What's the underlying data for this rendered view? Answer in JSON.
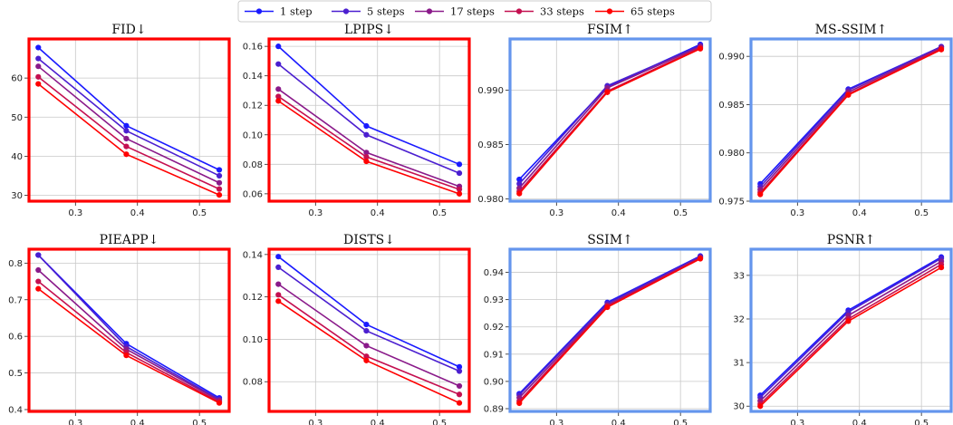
{
  "legend": {
    "placement": "top-center",
    "entries": [
      {
        "label": "1 step",
        "color": "#1a1aff"
      },
      {
        "label": "5 steps",
        "color": "#4b1fd0"
      },
      {
        "label": "17 steps",
        "color": "#8a1a8a"
      },
      {
        "label": "33 steps",
        "color": "#c41050"
      },
      {
        "label": "65 steps",
        "color": "#ff0000"
      }
    ]
  },
  "frame_colors": {
    "lower_is_better": "#ff0000",
    "higher_is_better": "#6495ed"
  },
  "chart_data": [
    {
      "type": "line",
      "title": "FID↓",
      "frame": "lower_is_better",
      "x": [
        0.24,
        0.382,
        0.532
      ],
      "xlim": [
        0.225,
        0.548
      ],
      "xticks": [
        0.3,
        0.4,
        0.5
      ],
      "ylim": [
        28.5,
        70
      ],
      "yticks": [
        30,
        40,
        50,
        60
      ],
      "yticklabels": [
        "30",
        "40",
        "50",
        "60"
      ],
      "grid": true,
      "series": [
        {
          "name": "1 step",
          "values": [
            67.8,
            47.8,
            36.5
          ]
        },
        {
          "name": "5 steps",
          "values": [
            65.0,
            46.5,
            35.0
          ]
        },
        {
          "name": "17 steps",
          "values": [
            63.0,
            44.5,
            33.2
          ]
        },
        {
          "name": "33 steps",
          "values": [
            60.3,
            42.5,
            31.6
          ]
        },
        {
          "name": "65 steps",
          "values": [
            58.5,
            40.5,
            30.1
          ]
        }
      ]
    },
    {
      "type": "line",
      "title": "LPIPS↓",
      "frame": "lower_is_better",
      "x": [
        0.24,
        0.382,
        0.532
      ],
      "xlim": [
        0.225,
        0.548
      ],
      "xticks": [
        0.3,
        0.4,
        0.5
      ],
      "ylim": [
        0.055,
        0.165
      ],
      "yticks": [
        0.06,
        0.08,
        0.1,
        0.12,
        0.14,
        0.16
      ],
      "yticklabels": [
        "0.06",
        "0.08",
        "0.10",
        "0.12",
        "0.14",
        "0.16"
      ],
      "grid": true,
      "series": [
        {
          "name": "1 step",
          "values": [
            0.16,
            0.106,
            0.08
          ]
        },
        {
          "name": "5 steps",
          "values": [
            0.148,
            0.1,
            0.074
          ]
        },
        {
          "name": "17 steps",
          "values": [
            0.131,
            0.088,
            0.065
          ]
        },
        {
          "name": "33 steps",
          "values": [
            0.126,
            0.085,
            0.063
          ]
        },
        {
          "name": "65 steps",
          "values": [
            0.123,
            0.082,
            0.06
          ]
        }
      ]
    },
    {
      "type": "line",
      "title": "FSIM↑",
      "frame": "higher_is_better",
      "x": [
        0.24,
        0.382,
        0.532
      ],
      "xlim": [
        0.225,
        0.548
      ],
      "xticks": [
        0.3,
        0.4,
        0.5
      ],
      "ylim": [
        0.9798,
        0.9947
      ],
      "yticks": [
        0.98,
        0.985,
        0.99
      ],
      "yticklabels": [
        "0.980",
        "0.985",
        "0.990"
      ],
      "grid": true,
      "series": [
        {
          "name": "1 step",
          "values": [
            0.9818,
            0.9903,
            0.9942
          ]
        },
        {
          "name": "5 steps",
          "values": [
            0.9814,
            0.9904,
            0.9941
          ]
        },
        {
          "name": "17 steps",
          "values": [
            0.981,
            0.9902,
            0.994
          ]
        },
        {
          "name": "33 steps",
          "values": [
            0.9807,
            0.9899,
            0.9939
          ]
        },
        {
          "name": "65 steps",
          "values": [
            0.9805,
            0.9898,
            0.9938
          ]
        }
      ]
    },
    {
      "type": "line",
      "title": "MS-SSIM↑",
      "frame": "higher_is_better",
      "x": [
        0.24,
        0.382,
        0.532
      ],
      "xlim": [
        0.225,
        0.548
      ],
      "xticks": [
        0.3,
        0.4,
        0.5
      ],
      "ylim": [
        0.975,
        0.9918
      ],
      "yticks": [
        0.975,
        0.98,
        0.985,
        0.99
      ],
      "yticklabels": [
        "0.975",
        "0.980",
        "0.985",
        "0.990"
      ],
      "grid": true,
      "series": [
        {
          "name": "1 step",
          "values": [
            0.9768,
            0.9866,
            0.991
          ]
        },
        {
          "name": "5 steps",
          "values": [
            0.9765,
            0.9865,
            0.991
          ]
        },
        {
          "name": "17 steps",
          "values": [
            0.9762,
            0.9863,
            0.9909
          ]
        },
        {
          "name": "33 steps",
          "values": [
            0.9759,
            0.9861,
            0.9908
          ]
        },
        {
          "name": "65 steps",
          "values": [
            0.9757,
            0.986,
            0.9907
          ]
        }
      ]
    },
    {
      "type": "line",
      "title": "PIEAPP↓",
      "frame": "lower_is_better",
      "x": [
        0.24,
        0.382,
        0.532
      ],
      "xlim": [
        0.225,
        0.548
      ],
      "xticks": [
        0.3,
        0.4,
        0.5
      ],
      "ylim": [
        0.395,
        0.838
      ],
      "yticks": [
        0.4,
        0.5,
        0.6,
        0.7,
        0.8
      ],
      "yticklabels": [
        "0.4",
        "0.5",
        "0.6",
        "0.7",
        "0.8"
      ],
      "grid": true,
      "series": [
        {
          "name": "1 step",
          "values": [
            0.822,
            0.58,
            0.432
          ]
        },
        {
          "name": "5 steps",
          "values": [
            0.822,
            0.572,
            0.428
          ]
        },
        {
          "name": "17 steps",
          "values": [
            0.781,
            0.565,
            0.425
          ]
        },
        {
          "name": "33 steps",
          "values": [
            0.75,
            0.556,
            0.421
          ]
        },
        {
          "name": "65 steps",
          "values": [
            0.73,
            0.548,
            0.418
          ]
        }
      ]
    },
    {
      "type": "line",
      "title": "DISTS↓",
      "frame": "lower_is_better",
      "x": [
        0.24,
        0.382,
        0.532
      ],
      "xlim": [
        0.225,
        0.548
      ],
      "xticks": [
        0.3,
        0.4,
        0.5
      ],
      "ylim": [
        0.066,
        0.1425
      ],
      "yticks": [
        0.08,
        0.1,
        0.12,
        0.14
      ],
      "yticklabels": [
        "0.08",
        "0.10",
        "0.12",
        "0.14"
      ],
      "grid": true,
      "series": [
        {
          "name": "1 step",
          "values": [
            0.139,
            0.107,
            0.087
          ]
        },
        {
          "name": "5 steps",
          "values": [
            0.134,
            0.104,
            0.085
          ]
        },
        {
          "name": "17 steps",
          "values": [
            0.126,
            0.097,
            0.078
          ]
        },
        {
          "name": "33 steps",
          "values": [
            0.121,
            0.092,
            0.074
          ]
        },
        {
          "name": "65 steps",
          "values": [
            0.118,
            0.09,
            0.07
          ]
        }
      ]
    },
    {
      "type": "line",
      "title": "SSIM↑",
      "frame": "higher_is_better",
      "x": [
        0.24,
        0.382,
        0.532
      ],
      "xlim": [
        0.225,
        0.548
      ],
      "xticks": [
        0.3,
        0.4,
        0.5
      ],
      "ylim": [
        0.889,
        0.9485
      ],
      "yticks": [
        0.89,
        0.9,
        0.91,
        0.92,
        0.93,
        0.94
      ],
      "yticklabels": [
        "0.89",
        "0.90",
        "0.91",
        "0.92",
        "0.93",
        "0.94"
      ],
      "grid": true,
      "series": [
        {
          "name": "1 step",
          "values": [
            0.8955,
            0.929,
            0.946
          ]
        },
        {
          "name": "5 steps",
          "values": [
            0.895,
            0.9286,
            0.9458
          ]
        },
        {
          "name": "17 steps",
          "values": [
            0.894,
            0.928,
            0.9455
          ]
        },
        {
          "name": "33 steps",
          "values": [
            0.8928,
            0.9276,
            0.9452
          ]
        },
        {
          "name": "65 steps",
          "values": [
            0.892,
            0.9272,
            0.945
          ]
        }
      ]
    },
    {
      "type": "line",
      "title": "PSNR↑",
      "frame": "higher_is_better",
      "x": [
        0.24,
        0.382,
        0.532
      ],
      "xlim": [
        0.225,
        0.548
      ],
      "xticks": [
        0.3,
        0.4,
        0.5
      ],
      "ylim": [
        29.88,
        33.6
      ],
      "yticks": [
        30,
        31,
        32,
        33
      ],
      "yticklabels": [
        "30",
        "31",
        "32",
        "33"
      ],
      "grid": true,
      "series": [
        {
          "name": "1 step",
          "values": [
            30.25,
            32.2,
            33.42
          ]
        },
        {
          "name": "5 steps",
          "values": [
            30.2,
            32.16,
            33.39
          ]
        },
        {
          "name": "17 steps",
          "values": [
            30.12,
            32.08,
            33.32
          ]
        },
        {
          "name": "33 steps",
          "values": [
            30.05,
            32.0,
            33.25
          ]
        },
        {
          "name": "65 steps",
          "values": [
            30.0,
            31.95,
            33.18
          ]
        }
      ]
    }
  ]
}
